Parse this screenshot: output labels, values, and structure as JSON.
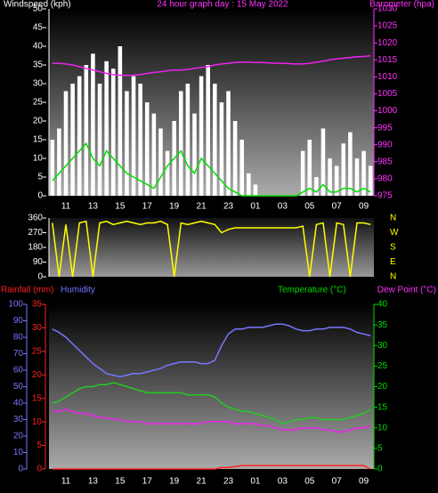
{
  "chart_data": [
    {
      "type": "line",
      "title": "24 hour graph day : 15 May 2022",
      "ylabel": "Windspeed (kph)",
      "y2label": "Barometer (hpa)",
      "categories": [
        null,
        null,
        "11",
        null,
        null,
        null,
        "13",
        null,
        null,
        null,
        "15",
        null,
        null,
        null,
        "17",
        null,
        null,
        null,
        "19",
        null,
        null,
        null,
        "21",
        null,
        null,
        null,
        "23",
        null,
        null,
        null,
        "01",
        null,
        null,
        null,
        "03",
        null,
        null,
        null,
        "05",
        null,
        null,
        null,
        "07",
        null,
        null,
        null,
        "09",
        null
      ],
      "ylim": [
        0,
        50
      ],
      "yticks": [
        0,
        5,
        10,
        15,
        20,
        25,
        30,
        35,
        40,
        45,
        50
      ],
      "ycolor": "#ffffff",
      "y2lim": [
        975,
        1030
      ],
      "y2ticks": [
        975,
        980,
        985,
        990,
        995,
        1000,
        1005,
        1010,
        1015,
        1020,
        1025,
        1030
      ],
      "y2color": "#ff33ff",
      "series": [
        {
          "color": "#ffffff",
          "style": "bars",
          "values": [
            15,
            18,
            28,
            30,
            32,
            35,
            38,
            30,
            36,
            34,
            40,
            28,
            32,
            30,
            25,
            22,
            18,
            12,
            20,
            28,
            30,
            22,
            32,
            35,
            30,
            25,
            28,
            20,
            15,
            6,
            3,
            0,
            0,
            0,
            0,
            0,
            0,
            12,
            15,
            5,
            18,
            10,
            8,
            14,
            17,
            10,
            12,
            8
          ]
        },
        {
          "color": "#00dd00",
          "values": [
            4,
            6,
            8,
            10,
            12,
            14,
            10,
            8,
            12,
            10,
            8,
            6,
            5,
            4,
            3,
            2,
            5,
            8,
            10,
            12,
            8,
            6,
            10,
            8,
            6,
            4,
            2,
            1,
            0,
            0,
            0,
            0,
            0,
            0,
            0,
            0,
            0,
            1,
            2,
            1,
            3,
            1,
            1,
            2,
            2,
            1,
            2,
            1
          ]
        },
        {
          "color": "#ee22ee",
          "axis": "y2",
          "values": [
            1014,
            1014,
            1013.8,
            1013.5,
            1013,
            1012.5,
            1012,
            1011.5,
            1011,
            1010.7,
            1010.5,
            1010.4,
            1010.5,
            1010.7,
            1011,
            1011.3,
            1011.5,
            1011.8,
            1012,
            1012,
            1012.2,
            1012.5,
            1012.8,
            1013,
            1013.5,
            1013.8,
            1014,
            1014.2,
            1014.3,
            1014.3,
            1014.2,
            1014.2,
            1014.1,
            1014,
            1014,
            1013.9,
            1013.8,
            1013.8,
            1014,
            1014.3,
            1014.6,
            1015,
            1015.3,
            1015.5,
            1015.7,
            1015.9,
            1016,
            1016.2
          ]
        }
      ]
    },
    {
      "type": "line",
      "ylim": [
        0,
        360
      ],
      "yticks": [
        0,
        90,
        180,
        270,
        360
      ],
      "ycolor": "#ffffff",
      "y2ticks": [
        {
          "value": 0,
          "label": "N"
        },
        {
          "value": 90,
          "label": "E"
        },
        {
          "value": 180,
          "label": "S"
        },
        {
          "value": 270,
          "label": "W"
        },
        {
          "value": 360,
          "label": "N"
        }
      ],
      "y2color": "#ffff00",
      "series": [
        {
          "color": "#ffff00",
          "values": [
            330,
            0,
            320,
            0,
            330,
            340,
            0,
            330,
            340,
            320,
            330,
            340,
            330,
            320,
            330,
            330,
            340,
            320,
            0,
            330,
            320,
            330,
            340,
            330,
            320,
            270,
            290,
            300,
            300,
            300,
            300,
            300,
            300,
            300,
            300,
            300,
            300,
            310,
            0,
            320,
            330,
            0,
            330,
            320,
            0,
            330,
            330,
            320
          ]
        }
      ]
    },
    {
      "type": "line",
      "ylabel": "Rainfall (mm)",
      "y2label": "Humidity",
      "y3label": "Temperature (°C)",
      "y4label": "Dew Point (°C)",
      "categories": [
        null,
        null,
        "11",
        null,
        null,
        null,
        "13",
        null,
        null,
        null,
        "15",
        null,
        null,
        null,
        "17",
        null,
        null,
        null,
        "19",
        null,
        null,
        null,
        "21",
        null,
        null,
        null,
        "23",
        null,
        null,
        null,
        "01",
        null,
        null,
        null,
        "03",
        null,
        null,
        null,
        "05",
        null,
        null,
        null,
        "07",
        null,
        null,
        null,
        "09",
        null
      ],
      "ylim": [
        0,
        35
      ],
      "yticks": [
        0,
        5,
        10,
        15,
        20,
        25,
        30,
        35
      ],
      "ycolor": "#ff2222",
      "y2lim": [
        0,
        100
      ],
      "y2ticks": [
        0,
        10,
        20,
        30,
        40,
        50,
        60,
        70,
        80,
        90,
        100
      ],
      "y2color": "#7777ff",
      "y3lim": [
        0,
        40
      ],
      "y3ticks": [
        0,
        5,
        10,
        15,
        20,
        25,
        30,
        35,
        40
      ],
      "y3color": "#00dd00",
      "series": [
        {
          "color": "#ff2222",
          "values": [
            0,
            0,
            0,
            0,
            0,
            0,
            0,
            0,
            0,
            0,
            0,
            0,
            0,
            0,
            0,
            0,
            0,
            0,
            0,
            0,
            0,
            0,
            0,
            0,
            0,
            0.3,
            0.3,
            0.5,
            0.7,
            0.7,
            0.7,
            0.7,
            0.7,
            0.7,
            0.7,
            0.7,
            0.7,
            0.7,
            0.7,
            0.7,
            0.7,
            0.7,
            0.7,
            0.7,
            0.7,
            0.7,
            0.7,
            0
          ]
        },
        {
          "color": "#7777ff",
          "axis": "y2",
          "values": [
            85,
            83,
            80,
            76,
            72,
            68,
            64,
            61,
            58,
            57,
            56,
            57,
            58,
            58,
            59,
            60,
            61,
            63,
            64,
            65,
            65,
            65,
            64,
            64,
            66,
            75,
            82,
            85,
            85,
            86,
            86,
            86,
            87,
            88,
            88,
            87,
            85,
            84,
            84,
            85,
            85,
            86,
            86,
            86,
            85,
            83,
            82,
            81
          ]
        },
        {
          "color": "#22cc22",
          "axis": "y3",
          "values": [
            16,
            16.5,
            17.5,
            18.5,
            19.5,
            20,
            20,
            20.5,
            20.5,
            21,
            20.5,
            20,
            19.5,
            19,
            18.5,
            18.5,
            18.5,
            18.5,
            18.5,
            18.5,
            18,
            18,
            18,
            18,
            17.5,
            16,
            15,
            14.5,
            14,
            14,
            13.5,
            13,
            12.5,
            12,
            11,
            11.5,
            12,
            12,
            12.5,
            12.5,
            12,
            12,
            12,
            12,
            12.5,
            13,
            13.5,
            14.5
          ]
        },
        {
          "color": "#ee22ee",
          "axis": "y3",
          "values": [
            14,
            14,
            14.5,
            14,
            13.5,
            13.5,
            13,
            12.5,
            12.5,
            12,
            12,
            11.5,
            11.5,
            11.5,
            11,
            11,
            11,
            11,
            11,
            11,
            11,
            11,
            11,
            11.5,
            11.5,
            11.5,
            11.5,
            11,
            11,
            11,
            11,
            10.5,
            10.5,
            10,
            9.5,
            9.5,
            9.5,
            10,
            10,
            10,
            9.5,
            9.5,
            9,
            9,
            9.5,
            10,
            10,
            10.5
          ]
        }
      ]
    }
  ]
}
